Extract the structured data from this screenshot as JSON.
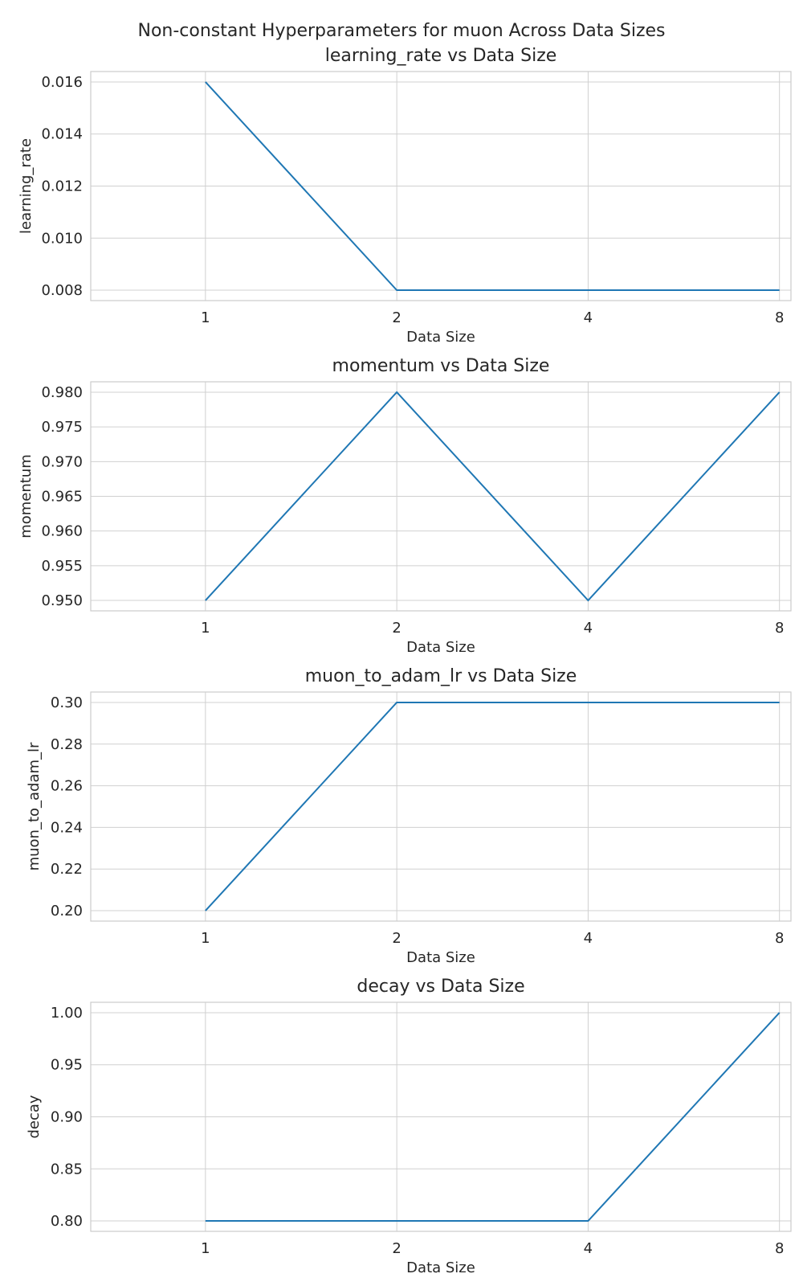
{
  "figure_title": "Non-constant Hyperparameters for muon Across Data Sizes",
  "colors": {
    "line": "#1f77b4",
    "grid": "#d0d0d0",
    "frame": "#cccccc",
    "text": "#262626"
  },
  "chart_data": [
    {
      "type": "line",
      "title": "learning_rate vs Data Size",
      "xlabel": "Data Size",
      "ylabel": "learning_rate",
      "x": [
        1,
        2,
        4,
        8
      ],
      "series": [
        {
          "values": [
            0.016,
            0.008,
            0.008,
            0.008
          ]
        }
      ],
      "xticks": [
        "1",
        "2",
        "4",
        "8"
      ],
      "xtick_values": [
        1,
        2,
        4,
        8
      ],
      "yticks": [
        "0.016",
        "0.014",
        "0.012",
        "0.010",
        "0.008"
      ],
      "ytick_values": [
        0.016,
        0.014,
        0.012,
        0.01,
        0.008
      ],
      "xlim": [
        0.66,
        8.34
      ],
      "ylim": [
        0.0076,
        0.0164
      ],
      "grid": true
    },
    {
      "type": "line",
      "title": "momentum vs Data Size",
      "xlabel": "Data Size",
      "ylabel": "momentum",
      "x": [
        1,
        2,
        4,
        8
      ],
      "series": [
        {
          "values": [
            0.95,
            0.98,
            0.95,
            0.98
          ]
        }
      ],
      "xticks": [
        "1",
        "2",
        "4",
        "8"
      ],
      "xtick_values": [
        1,
        2,
        4,
        8
      ],
      "yticks": [
        "0.980",
        "0.975",
        "0.970",
        "0.965",
        "0.960",
        "0.955",
        "0.950"
      ],
      "ytick_values": [
        0.98,
        0.975,
        0.97,
        0.965,
        0.96,
        0.955,
        0.95
      ],
      "xlim": [
        0.66,
        8.34
      ],
      "ylim": [
        0.9485,
        0.9815
      ],
      "grid": true
    },
    {
      "type": "line",
      "title": "muon_to_adam_lr vs Data Size",
      "xlabel": "Data Size",
      "ylabel": "muon_to_adam_lr",
      "x": [
        1,
        2,
        4,
        8
      ],
      "series": [
        {
          "values": [
            0.2,
            0.3,
            0.3,
            0.3
          ]
        }
      ],
      "xticks": [
        "1",
        "2",
        "4",
        "8"
      ],
      "xtick_values": [
        1,
        2,
        4,
        8
      ],
      "yticks": [
        "0.30",
        "0.28",
        "0.26",
        "0.24",
        "0.22",
        "0.20"
      ],
      "ytick_values": [
        0.3,
        0.28,
        0.26,
        0.24,
        0.22,
        0.2
      ],
      "xlim": [
        0.66,
        8.34
      ],
      "ylim": [
        0.195,
        0.305
      ],
      "grid": true
    },
    {
      "type": "line",
      "title": "decay vs Data Size",
      "xlabel": "Data Size",
      "ylabel": "decay",
      "x": [
        1,
        2,
        4,
        8
      ],
      "series": [
        {
          "values": [
            0.8,
            0.8,
            0.8,
            1.0
          ]
        }
      ],
      "xticks": [
        "1",
        "2",
        "4",
        "8"
      ],
      "xtick_values": [
        1,
        2,
        4,
        8
      ],
      "yticks": [
        "1.00",
        "0.95",
        "0.90",
        "0.85",
        "0.80"
      ],
      "ytick_values": [
        1.0,
        0.95,
        0.9,
        0.85,
        0.8
      ],
      "xlim": [
        0.66,
        8.34
      ],
      "ylim": [
        0.79,
        1.01
      ],
      "grid": true
    }
  ]
}
